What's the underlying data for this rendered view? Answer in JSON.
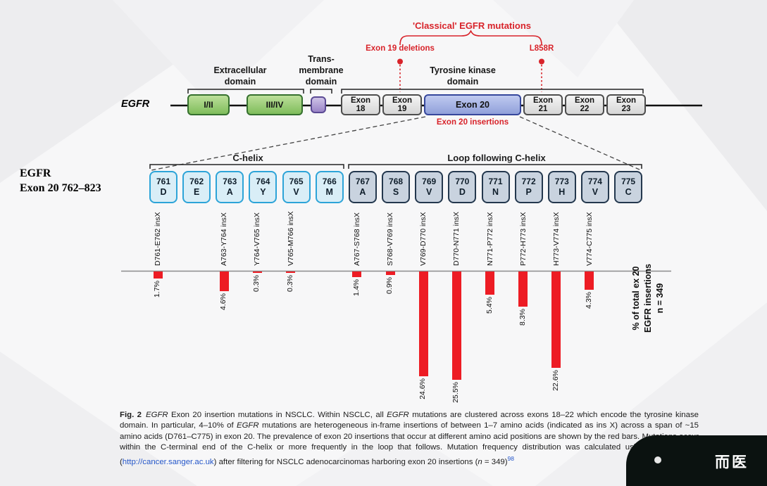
{
  "colors": {
    "accent_red": "#d8232a",
    "bar_red": "#ed1c24",
    "extracellular_green": "#8cc36a",
    "transmembrane_purple": "#a792cf",
    "exon20_blue": "#a3b1e3",
    "c_helix_cyan": "#2da4d8",
    "loop_steel": "#24384e"
  },
  "top_diagram": {
    "classical_title": "'Classical' EGFR mutations",
    "exon19_deletions_label": "Exon 19 deletions",
    "l858r_label": "L858R",
    "domains": {
      "extracellular": [
        "Extracellular",
        "domain"
      ],
      "transmembrane": [
        "Trans-",
        "membrane",
        "domain"
      ],
      "kinase": [
        "Tyrosine kinase",
        "domain"
      ]
    },
    "gene_label": "EGFR",
    "segments": [
      {
        "id": "domain-I-II",
        "type": "extracellular",
        "label": "I/II"
      },
      {
        "id": "domain-III-IV",
        "type": "extracellular",
        "label": "III/IV"
      },
      {
        "id": "transmembrane",
        "type": "tm",
        "label": ""
      },
      {
        "id": "exon-18",
        "type": "exon",
        "lines": [
          "Exon",
          "18"
        ]
      },
      {
        "id": "exon-19",
        "type": "exon",
        "lines": [
          "Exon",
          "19"
        ]
      },
      {
        "id": "exon-20",
        "type": "exon20",
        "label": "Exon 20"
      },
      {
        "id": "exon-21",
        "type": "exon",
        "lines": [
          "Exon",
          "21"
        ]
      },
      {
        "id": "exon-22",
        "type": "exon",
        "lines": [
          "Exon",
          "22"
        ]
      },
      {
        "id": "exon-23",
        "type": "exon",
        "lines": [
          "Exon",
          "23"
        ]
      }
    ],
    "exon20_insertions_label": "Exon 20 insertions"
  },
  "residue_strip": {
    "c_helix_label": "C-helix",
    "loop_label": "Loop following C-helix",
    "residues": [
      {
        "num": "761",
        "aa": "D",
        "region": "c-helix"
      },
      {
        "num": "762",
        "aa": "E",
        "region": "c-helix"
      },
      {
        "num": "763",
        "aa": "A",
        "region": "c-helix"
      },
      {
        "num": "764",
        "aa": "Y",
        "region": "c-helix"
      },
      {
        "num": "765",
        "aa": "V",
        "region": "c-helix"
      },
      {
        "num": "766",
        "aa": "M",
        "region": "c-helix"
      },
      {
        "num": "767",
        "aa": "A",
        "region": "loop"
      },
      {
        "num": "768",
        "aa": "S",
        "region": "loop"
      },
      {
        "num": "769",
        "aa": "V",
        "region": "loop"
      },
      {
        "num": "770",
        "aa": "D",
        "region": "loop"
      },
      {
        "num": "771",
        "aa": "N",
        "region": "loop"
      },
      {
        "num": "772",
        "aa": "P",
        "region": "loop"
      },
      {
        "num": "773",
        "aa": "H",
        "region": "loop"
      },
      {
        "num": "774",
        "aa": "V",
        "region": "loop"
      },
      {
        "num": "775",
        "aa": "C",
        "region": "loop"
      }
    ]
  },
  "side_label": {
    "line1": "EGFR",
    "line2": "Exon 20 762–823"
  },
  "chart_data": {
    "type": "bar",
    "orientation": "downward",
    "unit": "percent",
    "categories": [
      "D761-E762 insX",
      "A763-Y764 insX",
      "Y764-V765 insX",
      "V765-M766 insX",
      "A767-S768 insX",
      "S768-V769 insX",
      "V769-D770 insX",
      "D770-N771 insX",
      "N771-P772 insX",
      "P772-H773 insX",
      "H773-V774 insX",
      "V774-C775 insX"
    ],
    "values": [
      1.7,
      4.6,
      0.3,
      0.3,
      1.4,
      0.9,
      24.6,
      25.5,
      5.4,
      8.3,
      22.6,
      4.3
    ],
    "value_labels": [
      "1.7%",
      "4.6%",
      "0.3%",
      "0.3%",
      "1.4%",
      "0.9%",
      "24.6%",
      "25.5%",
      "5.4%",
      "8.3%",
      "22.6%",
      "4.3%"
    ],
    "anchor_residue_index": [
      0,
      2,
      3,
      4,
      6,
      7,
      8,
      9,
      10,
      11,
      12,
      13
    ],
    "bar_color": "#ed1c24",
    "axis_label_lines": [
      "% of total ex 20",
      "EGFR insertions",
      "n = 349"
    ],
    "n": 349,
    "ylim": [
      0,
      26
    ]
  },
  "caption": {
    "segments": [
      {
        "text": "Fig. 2",
        "style": "bold"
      },
      {
        "text": "EGFR",
        "style": "italic"
      },
      {
        "text": " Exon 20 insertion mutations in NSCLC. Within NSCLC, all ",
        "style": "normal"
      },
      {
        "text": "EGFR",
        "style": "italic"
      },
      {
        "text": " mutations are clustered across exons 18–22 which encode the tyrosine kinase domain. In particular, 4–10% of ",
        "style": "normal"
      },
      {
        "text": "EGFR",
        "style": "italic"
      },
      {
        "text": " mutations are heterogeneous in-frame insertions of between 1–7 amino acids (indicated as ins X) across a span of ~15 amino acids (D761–C775) in exon 20. The prevalence of exon 20 insertions that occur at different amino acid positions are shown by the red bars. Mutations occur within the C-terminal end of the C-helix or more frequently in the loop that follows. Mutation frequency distribution was calculated using COSMIC v86 (",
        "style": "normal"
      },
      {
        "text": "http://cancer.sanger.ac.uk",
        "style": "link"
      },
      {
        "text": ") after filtering for NSCLC adenocarcinomas harboring exon 20 insertions (",
        "style": "normal"
      },
      {
        "text": "n",
        "style": "italic"
      },
      {
        "text": " = 349)",
        "style": "normal"
      },
      {
        "text": "98",
        "style": "sup"
      }
    ]
  },
  "watermark": {
    "text": "而医"
  }
}
